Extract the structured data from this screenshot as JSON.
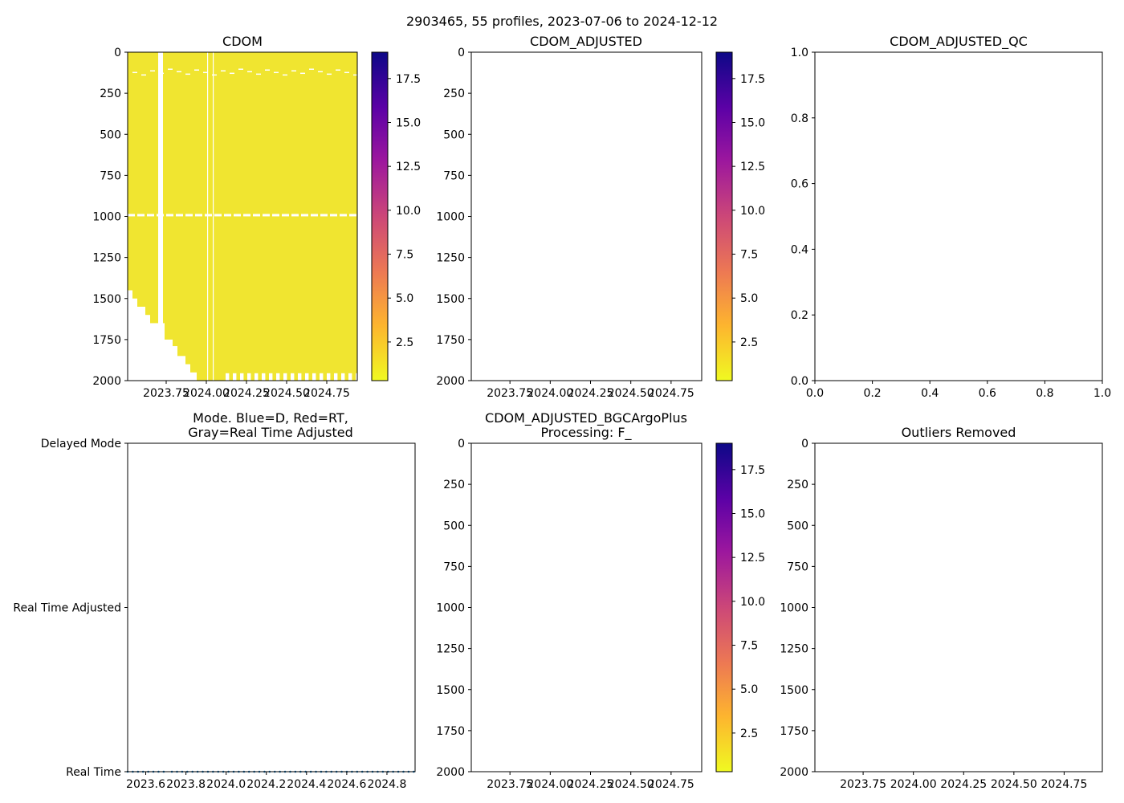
{
  "figure": {
    "suptitle": "2903465, 55 profiles, 2023-07-06 to 2024-12-12"
  },
  "colors": {
    "cdom_field": "#f0e530",
    "mode_series": "#1f77b4",
    "colormap": [
      "#f0f921",
      "#fdb42f",
      "#ed7953",
      "#cc4778",
      "#9c179e",
      "#5c01a6",
      "#0d0887"
    ]
  },
  "chart_data": [
    {
      "id": "cdom",
      "type": "heatmap",
      "title": "CDOM",
      "xlabel": "",
      "ylabel": "",
      "xlim": [
        2023.51,
        2024.94
      ],
      "ylim": [
        2000,
        0
      ],
      "xticks": [
        2023.75,
        2024.0,
        2024.25,
        2024.5,
        2024.75
      ],
      "xtick_labels": [
        "2023.75",
        "2024.00",
        "2024.25",
        "2024.50",
        "2024.75"
      ],
      "yticks": [
        0,
        250,
        500,
        750,
        1000,
        1250,
        1500,
        1750,
        2000
      ],
      "ytick_labels": [
        "0",
        "250",
        "500",
        "750",
        "1000",
        "1250",
        "1500",
        "1750",
        "2000"
      ],
      "value_description": "near-uniform low CDOM (~0.5) over whole depth range",
      "profile_max_depth": [
        {
          "x": 2023.51,
          "depth": 1450
        },
        {
          "x": 2023.54,
          "depth": 1500
        },
        {
          "x": 2023.57,
          "depth": 1550
        },
        {
          "x": 2023.62,
          "depth": 1600
        },
        {
          "x": 2023.65,
          "depth": 1650
        },
        {
          "x": 2023.74,
          "depth": 1750
        },
        {
          "x": 2023.79,
          "depth": 1790
        },
        {
          "x": 2023.82,
          "depth": 1850
        },
        {
          "x": 2023.87,
          "depth": 1900
        },
        {
          "x": 2023.9,
          "depth": 1950
        },
        {
          "x": 2023.94,
          "depth": 2000
        }
      ],
      "colorbar": {
        "range": [
          0.3,
          19
        ],
        "ticks": [
          2.5,
          5.0,
          7.5,
          10.0,
          12.5,
          15.0,
          17.5
        ],
        "tick_labels": [
          "2.5",
          "5.0",
          "7.5",
          "10.0",
          "12.5",
          "15.0",
          "17.5"
        ]
      }
    },
    {
      "id": "cdom_adjusted",
      "type": "heatmap",
      "title": "CDOM_ADJUSTED",
      "xlim": [
        2023.51,
        2024.94
      ],
      "ylim": [
        2000,
        0
      ],
      "xticks": [
        2023.75,
        2024.0,
        2024.25,
        2024.5,
        2024.75
      ],
      "xtick_labels": [
        "2023.75",
        "2024.00",
        "2024.25",
        "2024.50",
        "2024.75"
      ],
      "yticks": [
        0,
        250,
        500,
        750,
        1000,
        1250,
        1500,
        1750,
        2000
      ],
      "ytick_labels": [
        "0",
        "250",
        "500",
        "750",
        "1000",
        "1250",
        "1500",
        "1750",
        "2000"
      ],
      "values": [],
      "colorbar": {
        "range": [
          0.3,
          19
        ],
        "ticks": [
          2.5,
          5.0,
          7.5,
          10.0,
          12.5,
          15.0,
          17.5
        ],
        "tick_labels": [
          "2.5",
          "5.0",
          "7.5",
          "10.0",
          "12.5",
          "15.0",
          "17.5"
        ]
      }
    },
    {
      "id": "cdom_adjusted_qc",
      "type": "scatter",
      "title": "CDOM_ADJUSTED_QC",
      "xlim": [
        0,
        1
      ],
      "ylim": [
        0,
        1
      ],
      "xticks": [
        0.0,
        0.2,
        0.4,
        0.6,
        0.8,
        1.0
      ],
      "xtick_labels": [
        "0.0",
        "0.2",
        "0.4",
        "0.6",
        "0.8",
        "1.0"
      ],
      "yticks": [
        0.0,
        0.2,
        0.4,
        0.6,
        0.8,
        1.0
      ],
      "ytick_labels": [
        "0.0",
        "0.2",
        "0.4",
        "0.6",
        "0.8",
        "1.0"
      ],
      "values": []
    },
    {
      "id": "mode",
      "type": "scatter",
      "title_line1": "Mode. Blue=D, Red=RT,",
      "title_line2": "Gray=Real Time Adjusted",
      "xlim": [
        2023.51,
        2024.94
      ],
      "ylim": [
        0,
        2
      ],
      "xticks": [
        2023.6,
        2023.8,
        2024.0,
        2024.2,
        2024.4,
        2024.6,
        2024.8
      ],
      "xtick_labels": [
        "2023.6",
        "2023.8",
        "2024.0",
        "2024.2",
        "2024.4",
        "2024.6",
        "2024.8"
      ],
      "yticks": [
        0,
        1,
        2
      ],
      "ytick_labels": [
        "Real Time",
        "Real Time Adjusted",
        "Delayed Mode"
      ],
      "series": [
        {
          "name": "Real Time",
          "y": 0,
          "x_ranges": [
            [
              2023.51,
              2023.69
            ],
            [
              2023.73,
              2024.94
            ]
          ],
          "spacing": 0.0256
        }
      ]
    },
    {
      "id": "cdom_adjusted_bgcargoplus",
      "type": "heatmap",
      "title_line1": "CDOM_ADJUSTED_BGCArgoPlus",
      "title_line2": "Processing: F_",
      "xlim": [
        2023.51,
        2024.94
      ],
      "ylim": [
        2000,
        0
      ],
      "xticks": [
        2023.75,
        2024.0,
        2024.25,
        2024.5,
        2024.75
      ],
      "xtick_labels": [
        "2023.75",
        "2024.00",
        "2024.25",
        "2024.50",
        "2024.75"
      ],
      "yticks": [
        0,
        250,
        500,
        750,
        1000,
        1250,
        1500,
        1750,
        2000
      ],
      "ytick_labels": [
        "0",
        "250",
        "500",
        "750",
        "1000",
        "1250",
        "1500",
        "1750",
        "2000"
      ],
      "values": [],
      "colorbar": {
        "range": [
          0.3,
          19
        ],
        "ticks": [
          2.5,
          5.0,
          7.5,
          10.0,
          12.5,
          15.0,
          17.5
        ],
        "tick_labels": [
          "2.5",
          "5.0",
          "7.5",
          "10.0",
          "12.5",
          "15.0",
          "17.5"
        ]
      }
    },
    {
      "id": "outliers",
      "type": "scatter",
      "title": "Outliers Removed",
      "xlim": [
        2023.51,
        2024.94
      ],
      "ylim": [
        2000,
        0
      ],
      "xticks": [
        2023.75,
        2024.0,
        2024.25,
        2024.5,
        2024.75
      ],
      "xtick_labels": [
        "2023.75",
        "2024.00",
        "2024.25",
        "2024.50",
        "2024.75"
      ],
      "yticks": [
        0,
        250,
        500,
        750,
        1000,
        1250,
        1500,
        1750,
        2000
      ],
      "ytick_labels": [
        "0",
        "250",
        "500",
        "750",
        "1000",
        "1250",
        "1500",
        "1750",
        "2000"
      ],
      "values": []
    }
  ]
}
